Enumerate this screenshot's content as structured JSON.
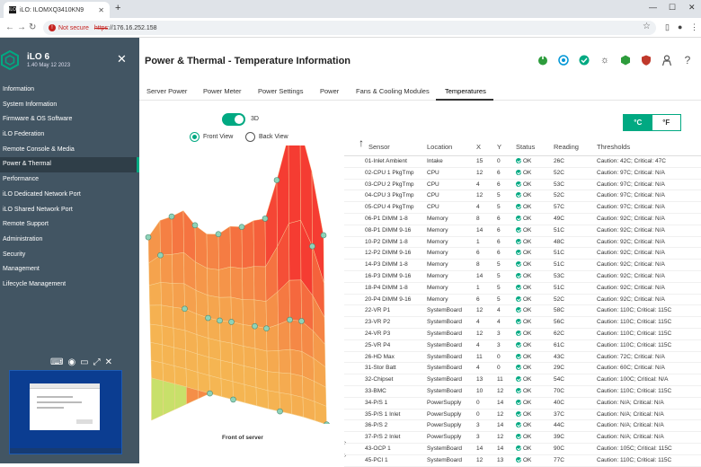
{
  "browser": {
    "tab_title": "iLO: ILOMXQ3410KN9",
    "tab_favicon_text": "ILO",
    "new_tab": "+",
    "not_secure": "Not secure",
    "url_scheme": "https",
    "url_rest": "://176.16.252.158"
  },
  "sidebar": {
    "title": "iLO 6",
    "subtitle": "1.40 May 12 2023",
    "items": [
      {
        "label": "Information"
      },
      {
        "label": "System Information"
      },
      {
        "label": "Firmware & OS Software"
      },
      {
        "label": "iLO Federation"
      },
      {
        "label": "Remote Console & Media"
      },
      {
        "label": "Power & Thermal",
        "active": true
      },
      {
        "label": "Performance"
      },
      {
        "label": "iLO Dedicated Network Port"
      },
      {
        "label": "iLO Shared Network Port"
      },
      {
        "label": "Remote Support"
      },
      {
        "label": "Administration"
      },
      {
        "label": "Security"
      },
      {
        "label": "Management"
      },
      {
        "label": "Lifecycle Management"
      }
    ]
  },
  "header": {
    "page_title": "Power & Thermal - Temperature Information",
    "icons": [
      "power-status-icon",
      "uid-icon",
      "health-icon",
      "brightness-icon",
      "ilo-hexagon-icon",
      "security-shield-icon",
      "user-icon",
      "help-icon"
    ]
  },
  "tabs": [
    {
      "label": "Server Power"
    },
    {
      "label": "Power Meter"
    },
    {
      "label": "Power Settings"
    },
    {
      "label": "Power"
    },
    {
      "label": "Fans & Cooling Modules"
    },
    {
      "label": "Temperatures",
      "active": true
    }
  ],
  "view": {
    "toggle_3d_label": "3D",
    "toggle_3d_on": true,
    "front_view": "Front View",
    "back_view": "Back View",
    "selected_view": "front",
    "front_of_server": "Front of server"
  },
  "units": {
    "celsius": "°C",
    "fahrenheit": "°F",
    "selected": "celsius"
  },
  "table": {
    "headers": {
      "sensor": "Sensor",
      "location": "Location",
      "x": "X",
      "y": "Y",
      "status": "Status",
      "reading": "Reading",
      "thresholds": "Thresholds"
    },
    "rows": [
      {
        "sensor": "01-Inlet Ambient",
        "location": "Intake",
        "x": "15",
        "y": "0",
        "status": "OK",
        "reading": "26C",
        "thresholds": "Caution: 42C; Critical: 47C"
      },
      {
        "sensor": "02-CPU 1 PkgTmp",
        "location": "CPU",
        "x": "12",
        "y": "6",
        "status": "OK",
        "reading": "52C",
        "thresholds": "Caution: 97C; Critical: N/A"
      },
      {
        "sensor": "03-CPU 2 PkgTmp",
        "location": "CPU",
        "x": "4",
        "y": "6",
        "status": "OK",
        "reading": "53C",
        "thresholds": "Caution: 97C; Critical: N/A"
      },
      {
        "sensor": "04-CPU 3 PkgTmp",
        "location": "CPU",
        "x": "12",
        "y": "5",
        "status": "OK",
        "reading": "52C",
        "thresholds": "Caution: 97C; Critical: N/A"
      },
      {
        "sensor": "05-CPU 4 PkgTmp",
        "location": "CPU",
        "x": "4",
        "y": "5",
        "status": "OK",
        "reading": "57C",
        "thresholds": "Caution: 97C; Critical: N/A"
      },
      {
        "sensor": "06-P1 DIMM 1-8",
        "location": "Memory",
        "x": "8",
        "y": "6",
        "status": "OK",
        "reading": "49C",
        "thresholds": "Caution: 92C; Critical: N/A"
      },
      {
        "sensor": "08-P1 DIMM 9-16",
        "location": "Memory",
        "x": "14",
        "y": "6",
        "status": "OK",
        "reading": "51C",
        "thresholds": "Caution: 92C; Critical: N/A"
      },
      {
        "sensor": "10-P2 DIMM 1-8",
        "location": "Memory",
        "x": "1",
        "y": "6",
        "status": "OK",
        "reading": "48C",
        "thresholds": "Caution: 92C; Critical: N/A"
      },
      {
        "sensor": "12-P2 DIMM 9-16",
        "location": "Memory",
        "x": "6",
        "y": "6",
        "status": "OK",
        "reading": "51C",
        "thresholds": "Caution: 92C; Critical: N/A"
      },
      {
        "sensor": "14-P3 DIMM 1-8",
        "location": "Memory",
        "x": "8",
        "y": "5",
        "status": "OK",
        "reading": "51C",
        "thresholds": "Caution: 92C; Critical: N/A"
      },
      {
        "sensor": "16-P3 DIMM 9-16",
        "location": "Memory",
        "x": "14",
        "y": "5",
        "status": "OK",
        "reading": "53C",
        "thresholds": "Caution: 92C; Critical: N/A"
      },
      {
        "sensor": "18-P4 DIMM 1-8",
        "location": "Memory",
        "x": "1",
        "y": "5",
        "status": "OK",
        "reading": "51C",
        "thresholds": "Caution: 92C; Critical: N/A"
      },
      {
        "sensor": "20-P4 DIMM 9-16",
        "location": "Memory",
        "x": "6",
        "y": "5",
        "status": "OK",
        "reading": "52C",
        "thresholds": "Caution: 92C; Critical: N/A"
      },
      {
        "sensor": "22-VR P1",
        "location": "SystemBoard",
        "x": "12",
        "y": "4",
        "status": "OK",
        "reading": "58C",
        "thresholds": "Caution: 110C; Critical: 115C"
      },
      {
        "sensor": "23-VR P2",
        "location": "SystemBoard",
        "x": "4",
        "y": "4",
        "status": "OK",
        "reading": "56C",
        "thresholds": "Caution: 110C; Critical: 115C"
      },
      {
        "sensor": "24-VR P3",
        "location": "SystemBoard",
        "x": "12",
        "y": "3",
        "status": "OK",
        "reading": "62C",
        "thresholds": "Caution: 110C; Critical: 115C"
      },
      {
        "sensor": "25-VR P4",
        "location": "SystemBoard",
        "x": "4",
        "y": "3",
        "status": "OK",
        "reading": "61C",
        "thresholds": "Caution: 110C; Critical: 115C"
      },
      {
        "sensor": "26-HD Max",
        "location": "SystemBoard",
        "x": "11",
        "y": "0",
        "status": "OK",
        "reading": "43C",
        "thresholds": "Caution: 72C; Critical: N/A"
      },
      {
        "sensor": "31-Stor Batt",
        "location": "SystemBoard",
        "x": "4",
        "y": "0",
        "status": "OK",
        "reading": "29C",
        "thresholds": "Caution: 60C; Critical: N/A"
      },
      {
        "sensor": "32-Chipset",
        "location": "SystemBoard",
        "x": "13",
        "y": "11",
        "status": "OK",
        "reading": "54C",
        "thresholds": "Caution: 100C; Critical: N/A"
      },
      {
        "sensor": "33-BMC",
        "location": "SystemBoard",
        "x": "10",
        "y": "12",
        "status": "OK",
        "reading": "70C",
        "thresholds": "Caution: 110C; Critical: 115C"
      },
      {
        "sensor": "34-P/S 1",
        "location": "PowerSupply",
        "x": "0",
        "y": "14",
        "status": "OK",
        "reading": "40C",
        "thresholds": "Caution: N/A; Critical: N/A"
      },
      {
        "sensor": "35-P/S 1 Inlet",
        "location": "PowerSupply",
        "x": "0",
        "y": "12",
        "status": "OK",
        "reading": "37C",
        "thresholds": "Caution: N/A; Critical: N/A"
      },
      {
        "sensor": "36-P/S 2",
        "location": "PowerSupply",
        "x": "3",
        "y": "14",
        "status": "OK",
        "reading": "44C",
        "thresholds": "Caution: N/A; Critical: N/A"
      },
      {
        "sensor": "37-P/S 2 Inlet",
        "location": "PowerSupply",
        "x": "3",
        "y": "12",
        "status": "OK",
        "reading": "39C",
        "thresholds": "Caution: N/A; Critical: N/A"
      },
      {
        "sensor": "43-OCP 1",
        "location": "SystemBoard",
        "x": "14",
        "y": "14",
        "status": "OK",
        "reading": "90C",
        "thresholds": "Caution: 105C; Critical: 115C"
      },
      {
        "sensor": "45-PCI 1",
        "location": "SystemBoard",
        "x": "12",
        "y": "13",
        "status": "OK",
        "reading": "77C",
        "thresholds": "Caution: 110C; Critical: 115C"
      }
    ]
  },
  "colors": {
    "accent": "#01a982",
    "sidebar": "#425563",
    "sidebar_active": "#2f3e48"
  }
}
